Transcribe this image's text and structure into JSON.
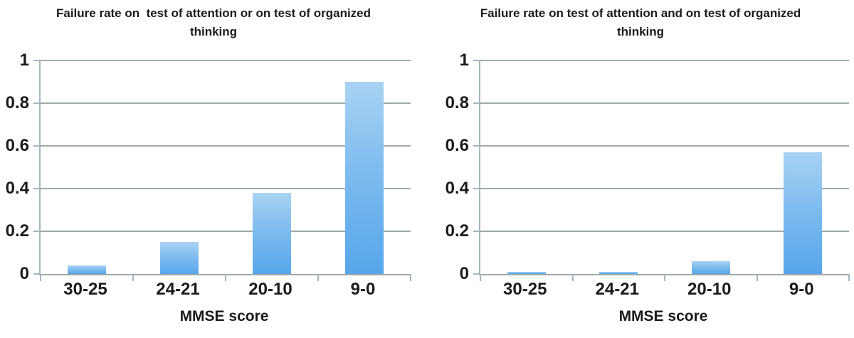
{
  "chart_data": [
    {
      "type": "bar",
      "title": "Failure rate on  test of attention or on test of organized thinking",
      "title_lines": [
        "Failure rate on  test of attention or on test of organized",
        "thinking"
      ],
      "xlabel": "MMSE score",
      "ylabel": "",
      "categories": [
        "30-25",
        "24-21",
        "20-10",
        "9-0"
      ],
      "values": [
        0.04,
        0.15,
        0.38,
        0.9
      ],
      "ylim": [
        0,
        1
      ],
      "yticks": [
        1,
        0.8,
        0.6,
        0.4,
        0.2,
        0
      ],
      "ytick_labels": [
        "1",
        "0.8",
        "0.6",
        "0.4",
        "0.2",
        "0"
      ],
      "grid": true,
      "legend": false
    },
    {
      "type": "bar",
      "title": "Failure rate on test of attention and on test of organized thinking",
      "title_lines": [
        "Failure rate on test of attention and on test of organized",
        "thinking"
      ],
      "xlabel": "MMSE score",
      "ylabel": "",
      "categories": [
        "30-25",
        "24-21",
        "20-10",
        "9-0"
      ],
      "values": [
        0.01,
        0.01,
        0.06,
        0.57
      ],
      "ylim": [
        0,
        1
      ],
      "yticks": [
        1,
        0.8,
        0.6,
        0.4,
        0.2,
        0
      ],
      "ytick_labels": [
        "1",
        "0.8",
        "0.6",
        "0.4",
        "0.2",
        "0"
      ],
      "grid": true,
      "legend": false
    }
  ],
  "colors": {
    "bar_top": "#a9d3f3",
    "bar_mid": "#7fbcef",
    "bar_bottom": "#57a6eb",
    "gridline": "#9ea8a8",
    "axis": "#a3b6bf",
    "text": "#1b1b1b",
    "background": "#ffffff"
  }
}
